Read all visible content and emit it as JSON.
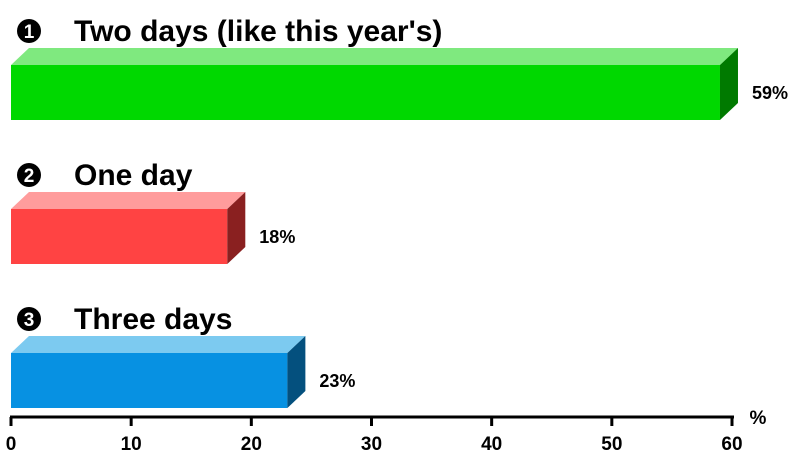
{
  "chart_data": {
    "type": "bar",
    "orientation": "horizontal",
    "style": "3d",
    "categories": [
      {
        "marker": "1",
        "label": "Two days (like this year's)",
        "value": 59,
        "value_label": "59%",
        "color": "#00d800",
        "top_color": "#7fe97f",
        "side_color": "#007a00"
      },
      {
        "marker": "2",
        "label": "One day",
        "value": 18,
        "value_label": "18%",
        "color": "#ff4343",
        "top_color": "#ff9c9c",
        "side_color": "#8a2020"
      },
      {
        "marker": "3",
        "label": "Three days",
        "value": 23,
        "value_label": "23%",
        "color": "#0791e2",
        "top_color": "#7ccaf0",
        "side_color": "#04507e"
      }
    ],
    "xlim": [
      0,
      60
    ],
    "x_ticks": [
      0,
      10,
      20,
      30,
      40,
      50,
      60
    ],
    "x_tick_labels": [
      "0",
      "10",
      "20",
      "30",
      "40",
      "50",
      "60"
    ],
    "x_unit_label": "%",
    "grid": false,
    "legend": "none"
  }
}
